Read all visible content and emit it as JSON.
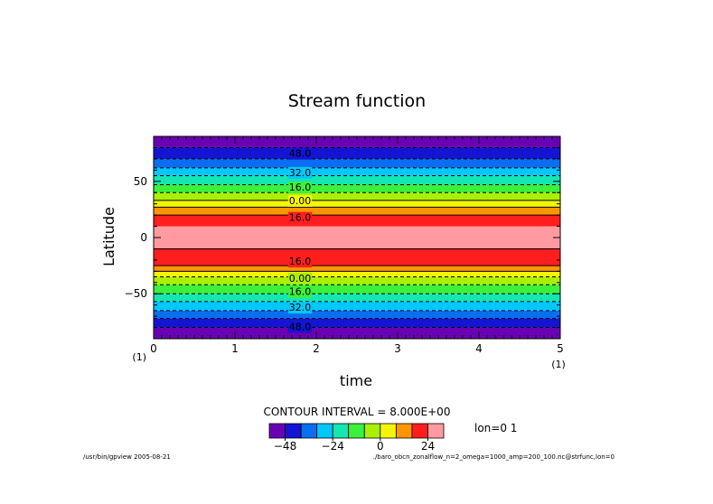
{
  "chart_data": {
    "type": "heatmap",
    "title": "Stream function",
    "xlabel": "time",
    "ylabel": "Latitude",
    "xlim": [
      0,
      5
    ],
    "ylim": [
      -90,
      90
    ],
    "x_ticks": [
      "0",
      "1",
      "2",
      "3",
      "4",
      "5"
    ],
    "x_tick_values": [
      0,
      1,
      2,
      3,
      4,
      5
    ],
    "y_ticks": [
      "50",
      "0",
      "−50"
    ],
    "y_tick_values": [
      50,
      0,
      -50
    ],
    "x_unit_left": "(1)",
    "x_unit_right": "(1)",
    "bands": [
      {
        "lat": [
          -90,
          -80
        ],
        "level": 0
      },
      {
        "lat": [
          -80,
          -72
        ],
        "level": 1
      },
      {
        "lat": [
          -72,
          -65
        ],
        "level": 2
      },
      {
        "lat": [
          -65,
          -57
        ],
        "level": 3
      },
      {
        "lat": [
          -57,
          -50
        ],
        "level": 4
      },
      {
        "lat": [
          -50,
          -42
        ],
        "level": 5
      },
      {
        "lat": [
          -42,
          -35
        ],
        "level": 6
      },
      {
        "lat": [
          -35,
          -30
        ],
        "level": 7
      },
      {
        "lat": [
          -30,
          -25
        ],
        "level": 8
      },
      {
        "lat": [
          -25,
          -10
        ],
        "level": 9
      },
      {
        "lat": [
          -10,
          10
        ],
        "level": 10
      },
      {
        "lat": [
          10,
          20
        ],
        "level": 9
      },
      {
        "lat": [
          20,
          27
        ],
        "level": 8
      },
      {
        "lat": [
          27,
          33
        ],
        "level": 7
      },
      {
        "lat": [
          33,
          40
        ],
        "level": 6
      },
      {
        "lat": [
          40,
          47
        ],
        "level": 5
      },
      {
        "lat": [
          47,
          55
        ],
        "level": 4
      },
      {
        "lat": [
          55,
          62
        ],
        "level": 3
      },
      {
        "lat": [
          62,
          70
        ],
        "level": 2
      },
      {
        "lat": [
          70,
          80
        ],
        "level": 1
      },
      {
        "lat": [
          80,
          90
        ],
        "level": 0
      }
    ],
    "contours": [
      {
        "lat": -80,
        "dashed": true
      },
      {
        "lat": -72,
        "dashed": true
      },
      {
        "lat": -65,
        "dashed": true
      },
      {
        "lat": -57,
        "dashed": true
      },
      {
        "lat": -50,
        "dashed": true
      },
      {
        "lat": -42,
        "dashed": true
      },
      {
        "lat": -35,
        "dashed": true
      },
      {
        "lat": -30,
        "dashed": false
      },
      {
        "lat": -25,
        "dashed": false
      },
      {
        "lat": -10,
        "dashed": false
      },
      {
        "lat": 20,
        "dashed": false
      },
      {
        "lat": 27,
        "dashed": false
      },
      {
        "lat": 33,
        "dashed": false
      },
      {
        "lat": 40,
        "dashed": true
      },
      {
        "lat": 47,
        "dashed": true
      },
      {
        "lat": 55,
        "dashed": true
      },
      {
        "lat": 62,
        "dashed": true
      },
      {
        "lat": 70,
        "dashed": true
      },
      {
        "lat": 80,
        "dashed": true
      }
    ],
    "contour_labels": [
      {
        "text": "48.0",
        "x": 1.8,
        "lat": 75
      },
      {
        "text": "32.0",
        "x": 1.8,
        "lat": 58
      },
      {
        "text": "16.0",
        "x": 1.8,
        "lat": 45
      },
      {
        "text": "0.00",
        "x": 1.8,
        "lat": 33
      },
      {
        "text": "16.0",
        "x": 1.8,
        "lat": 18
      },
      {
        "text": "16.0",
        "x": 1.8,
        "lat": -21
      },
      {
        "text": "0.00",
        "x": 1.8,
        "lat": -36
      },
      {
        "text": "16.0",
        "x": 1.8,
        "lat": -48
      },
      {
        "text": "32.0",
        "x": 1.8,
        "lat": -62
      },
      {
        "text": "48.0",
        "x": 1.8,
        "lat": -79
      }
    ],
    "colorbar": {
      "colors": [
        "#6a00b4",
        "#1414d2",
        "#0a6ef0",
        "#00c8ff",
        "#14e6b4",
        "#3cf03c",
        "#aaf000",
        "#f5f500",
        "#ff9600",
        "#ff1e1e",
        "#ff9aa0"
      ],
      "tick_labels": [
        "−48",
        "−24",
        "0",
        "24"
      ],
      "tick_positions": [
        1,
        4,
        7,
        10
      ]
    },
    "contour_interval_text": "CONTOUR INTERVAL = 8.000E+00",
    "slice_text": "lon=0 1"
  },
  "footer": {
    "left": "/usr/bin/gpview  2005-08-21",
    "right": "./baro_obcn_zonalflow_n=2_omega=1000_amp=200_100.nc@strfunc,lon=0"
  }
}
